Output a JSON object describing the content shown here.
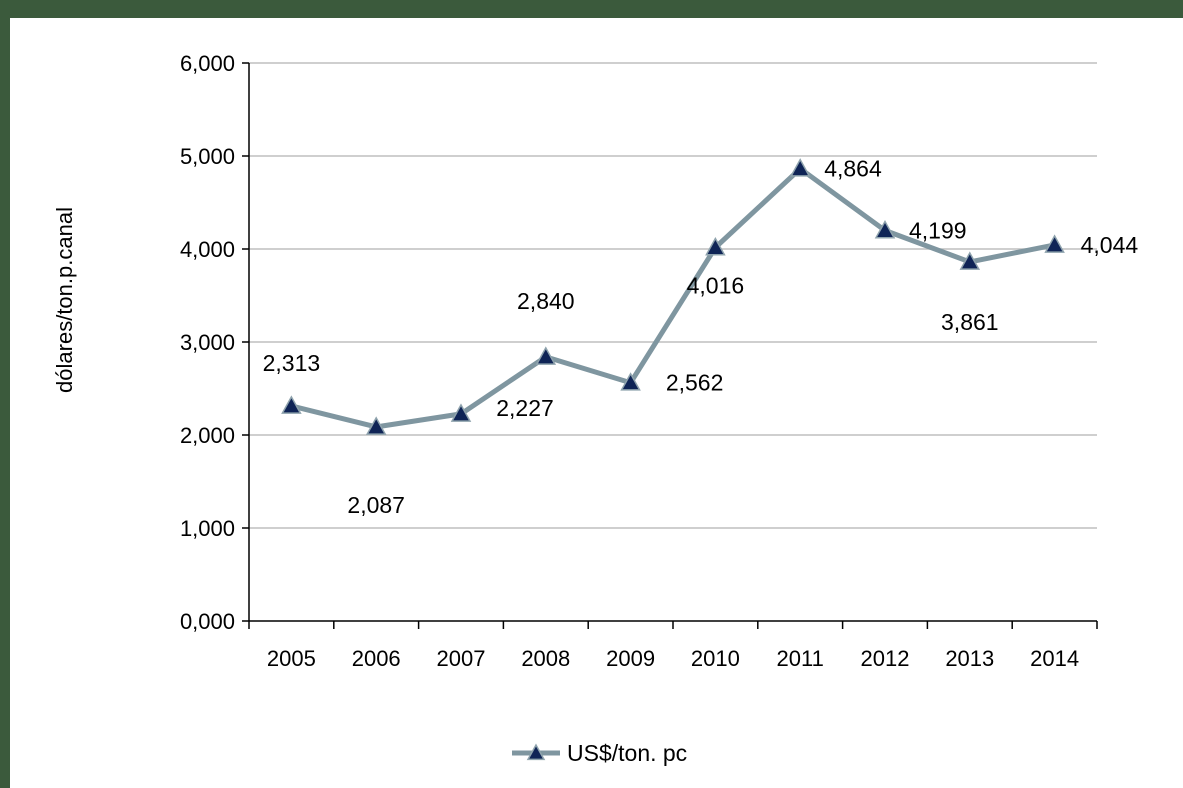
{
  "colors": {
    "border": "#3b5a3c",
    "background": "#ffffff",
    "line": "#7f96a0",
    "marker_fill": "#0f2456",
    "marker_stroke": "#8fa3ad",
    "gridline": "#bfbfbf",
    "axis": "#000000"
  },
  "chart_data": {
    "type": "line",
    "title": "",
    "xlabel": "",
    "ylabel": "dólares/ton.p.canal",
    "categories": [
      "2005",
      "2006",
      "2007",
      "2008",
      "2009",
      "2010",
      "2011",
      "2012",
      "2013",
      "2014"
    ],
    "ylim": [
      0,
      6000
    ],
    "yticks": [
      0,
      1000,
      2000,
      3000,
      4000,
      5000,
      6000
    ],
    "ytick_labels": [
      "0,000",
      "1,000",
      "2,000",
      "3,000",
      "4,000",
      "5,000",
      "6,000"
    ],
    "grid": "horizontal",
    "legend_position": "bottom",
    "marker": "triangle-icon",
    "series": [
      {
        "name": "US$/ton. pc",
        "values": [
          2313,
          2087,
          2227,
          2840,
          2562,
          4016,
          4864,
          4199,
          3861,
          4044
        ],
        "labels": [
          "2,313",
          "2,087",
          "2,227",
          "2,840",
          "2,562",
          "4,016",
          "4,864",
          "4,199",
          "3,861",
          "4,044"
        ]
      }
    ]
  }
}
